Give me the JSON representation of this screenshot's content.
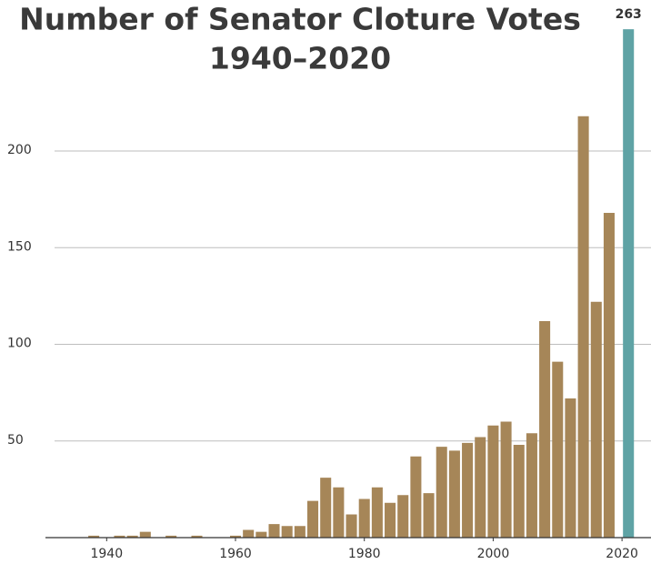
{
  "chart_data": {
    "type": "bar",
    "title_lines": [
      "Number of Senator Cloture Votes",
      "1940–2020"
    ],
    "x": [
      1938,
      1940,
      1942,
      1944,
      1946,
      1948,
      1950,
      1952,
      1954,
      1956,
      1958,
      1960,
      1962,
      1964,
      1966,
      1968,
      1970,
      1972,
      1974,
      1976,
      1978,
      1980,
      1982,
      1984,
      1986,
      1988,
      1990,
      1992,
      1994,
      1996,
      1998,
      2000,
      2002,
      2004,
      2006,
      2008,
      2010,
      2012,
      2014,
      2016,
      2018,
      2021
    ],
    "values": [
      1,
      0,
      1,
      1,
      3,
      0,
      1,
      0,
      1,
      0,
      0,
      1,
      4,
      3,
      7,
      6,
      6,
      19,
      31,
      26,
      12,
      20,
      26,
      18,
      22,
      42,
      23,
      47,
      45,
      49,
      52,
      58,
      60,
      48,
      54,
      112,
      91,
      72,
      218,
      122,
      168,
      263
    ],
    "color": "#a68658",
    "last_color": "#5fa3a5",
    "annotate_last": true,
    "xlim": [
      1930.5,
      2024.5
    ],
    "xticks": [
      1940,
      1960,
      1980,
      2000,
      2020
    ],
    "ylim": [
      0,
      273
    ],
    "yticks": [
      50,
      100,
      150,
      200
    ],
    "grid": true
  }
}
